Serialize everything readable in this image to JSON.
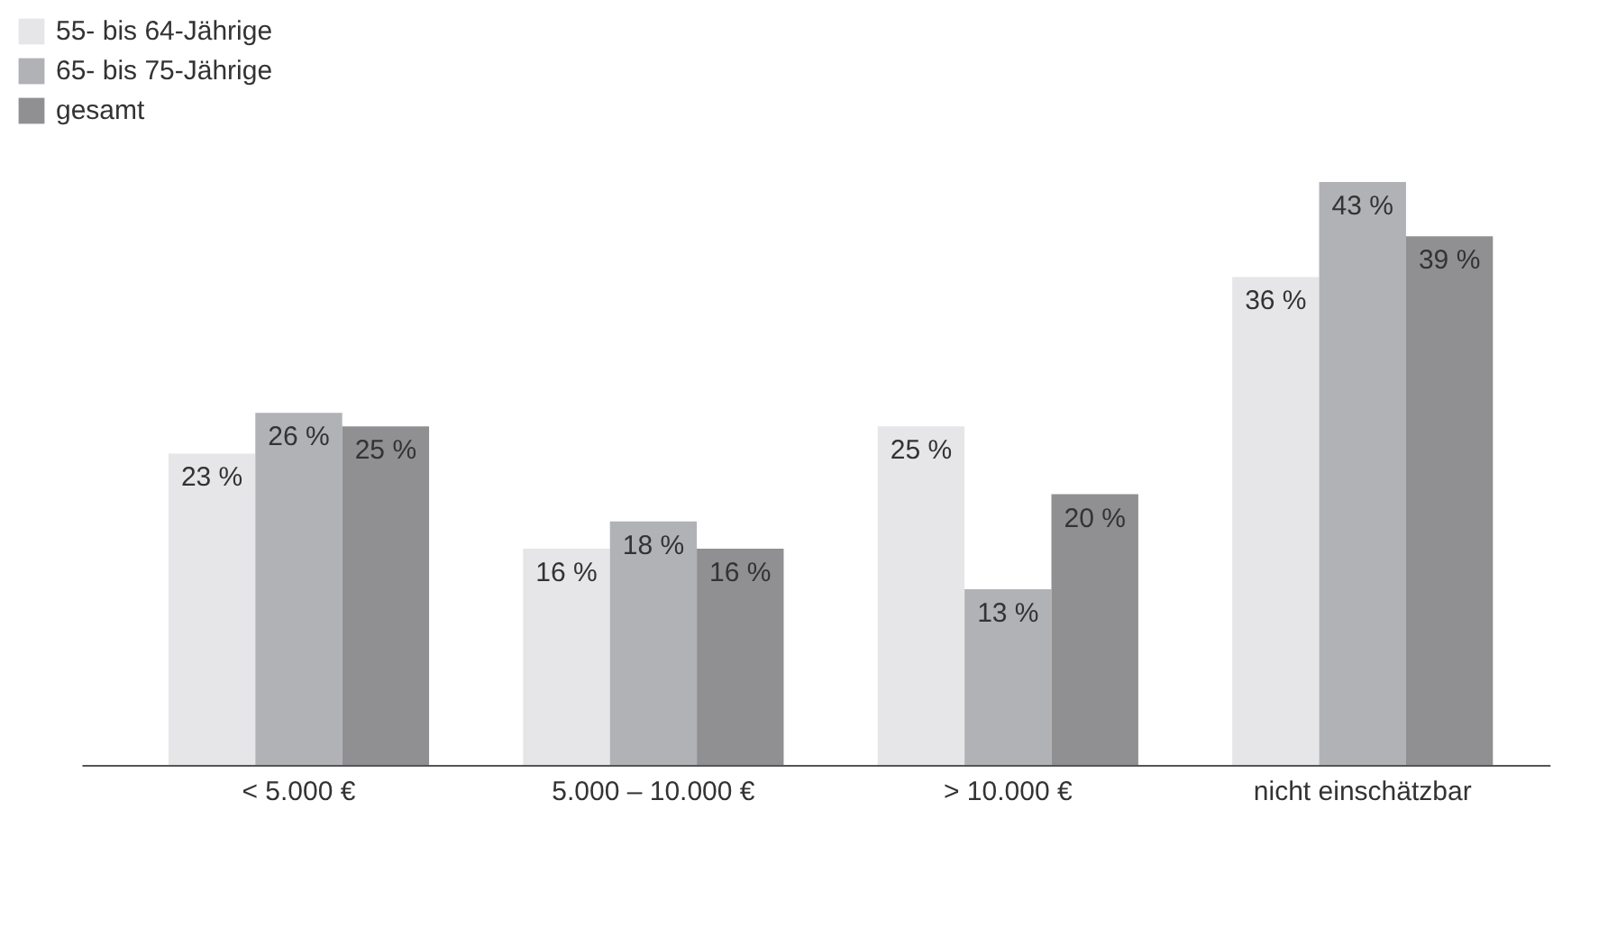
{
  "chart_data": {
    "type": "bar",
    "categories": [
      "< 5.000 €",
      "5.000 – 10.000 €",
      "> 10.000 €",
      "nicht einschätzbar"
    ],
    "series": [
      {
        "name": "55- bis 64-Jährige",
        "color": "#e6e6e8",
        "values": [
          23,
          16,
          25,
          36
        ],
        "value_labels": [
          "23 %",
          "16 %",
          "25 %",
          "36 %"
        ]
      },
      {
        "name": "65- bis 75-Jährige",
        "color": "#b0b2b5",
        "values": [
          26,
          18,
          13,
          43
        ],
        "value_labels": [
          "26 %",
          "18 %",
          "13 %",
          "43 %"
        ]
      },
      {
        "name": "gesamt",
        "color": "#909093",
        "values": [
          25,
          16,
          20,
          39
        ],
        "value_labels": [
          "25 %",
          "16 %",
          "20 %",
          "39 %"
        ]
      }
    ],
    "legend": "top left",
    "grid": false
  }
}
